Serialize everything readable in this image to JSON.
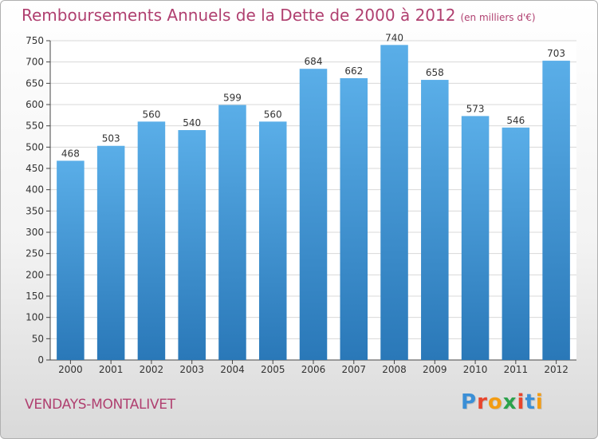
{
  "chart_data": {
    "type": "bar",
    "title": "Remboursements Annuels de la Dette de 2000 à 2012",
    "subtitle": "(en milliers d'€)",
    "categories": [
      "2000",
      "2001",
      "2002",
      "2003",
      "2004",
      "2005",
      "2006",
      "2007",
      "2008",
      "2009",
      "2010",
      "2011",
      "2012"
    ],
    "values": [
      468,
      503,
      560,
      540,
      599,
      560,
      684,
      662,
      740,
      658,
      573,
      546,
      703
    ],
    "ylim": [
      0,
      750
    ],
    "yticks": [
      0,
      50,
      100,
      150,
      200,
      250,
      300,
      350,
      400,
      450,
      500,
      550,
      600,
      650,
      700,
      750
    ],
    "grid": true,
    "bar_color_top": "#5aaee8",
    "bar_color_bottom": "#2a78b8"
  },
  "commune": "VENDAYS-MONTALIVET",
  "logo": {
    "text": "Proxiti",
    "letter_colors": [
      "#3b8fd6",
      "#e8452c",
      "#f39c12",
      "#2ba24c",
      "#e8452c",
      "#3b8fd6",
      "#f39c12"
    ]
  },
  "colors": {
    "title": "#b04070",
    "grid": "#d8d8d8",
    "axis": "#444444"
  }
}
